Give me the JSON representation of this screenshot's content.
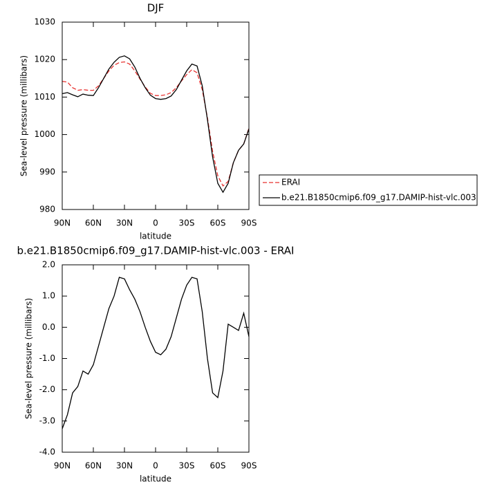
{
  "chart_data": [
    {
      "type": "line",
      "title": "DJF",
      "xlabel": "latitude",
      "ylabel": "Sea-level pressure (millibars)",
      "x": [
        90,
        85,
        80,
        75,
        70,
        65,
        60,
        55,
        50,
        45,
        40,
        35,
        30,
        25,
        20,
        15,
        10,
        5,
        0,
        -5,
        -10,
        -15,
        -20,
        -25,
        -30,
        -35,
        -40,
        -45,
        -50,
        -55,
        -60,
        -65,
        -70,
        -75,
        -80,
        -85,
        -90
      ],
      "series": [
        {
          "name": "ERAI",
          "color": "#e8312f",
          "linestyle": "dashed",
          "values": [
            1014.2,
            1014,
            1012.5,
            1011.8,
            1012,
            1011.8,
            1011.8,
            1013,
            1015,
            1017,
            1018.5,
            1019.2,
            1019.4,
            1018.8,
            1017,
            1014.8,
            1012.7,
            1011,
            1010.4,
            1010.4,
            1010.6,
            1011.2,
            1012.5,
            1014.3,
            1016,
            1017.3,
            1016.5,
            1012,
            1004.5,
            995.5,
            989,
            986.3,
            987.5,
            992.5,
            995.8,
            997.5,
            1001.7
          ]
        },
        {
          "name": "b.e21.B1850cmip6.f09_g17.DAMIP-hist-vlc.003",
          "color": "#000000",
          "linestyle": "solid",
          "values": [
            1010.9,
            1011.2,
            1010.6,
            1010.1,
            1010.8,
            1010.5,
            1010.4,
            1012.5,
            1015,
            1017.5,
            1019.3,
            1020.6,
            1021,
            1020.2,
            1018,
            1015,
            1012.5,
            1010.5,
            1009.6,
            1009.4,
            1009.6,
            1010.3,
            1012,
            1014.5,
            1017,
            1018.8,
            1018.3,
            1013,
            1004,
            994,
            987,
            984.6,
            987,
            992.5,
            995.8,
            997.5,
            1001.5
          ]
        }
      ],
      "xlim": [
        90,
        -90
      ],
      "xticks": [
        {
          "value": 90,
          "label": "90N"
        },
        {
          "value": 60,
          "label": "60N"
        },
        {
          "value": 30,
          "label": "30N"
        },
        0,
        {
          "value": -30,
          "label": "30S"
        },
        {
          "value": -60,
          "label": "60S"
        },
        {
          "value": -90,
          "label": "90S"
        }
      ],
      "ylim": [
        980,
        1030
      ],
      "yticks": [
        980,
        990,
        1000,
        1010,
        1020,
        1030
      ],
      "legend": "outside-right"
    },
    {
      "type": "line",
      "title": "b.e21.B1850cmip6.f09_g17.DAMIP-hist-vlc.003 - ERAI",
      "xlabel": "latitude",
      "ylabel": "Sea-level pressure (millibars)",
      "x": [
        90,
        85,
        80,
        75,
        70,
        65,
        60,
        55,
        50,
        45,
        40,
        35,
        30,
        25,
        20,
        15,
        10,
        5,
        0,
        -5,
        -10,
        -15,
        -20,
        -25,
        -30,
        -35,
        -40,
        -45,
        -50,
        -55,
        -60,
        -65,
        -70,
        -75,
        -80,
        -85,
        -90
      ],
      "series": [
        {
          "name": null,
          "color": "#000000",
          "linestyle": "solid",
          "values": [
            -3.25,
            -2.8,
            -2.1,
            -1.9,
            -1.4,
            -1.5,
            -1.2,
            -0.6,
            0,
            0.6,
            1,
            1.6,
            1.55,
            1.2,
            0.9,
            0.5,
            0,
            -0.45,
            -0.8,
            -0.88,
            -0.7,
            -0.3,
            0.3,
            0.9,
            1.35,
            1.6,
            1.55,
            0.5,
            -1,
            -2.1,
            -2.25,
            -1.4,
            0.1,
            0,
            -0.1,
            0.45,
            -0.3
          ]
        }
      ],
      "xlim": [
        90,
        -90
      ],
      "xticks": [
        {
          "value": 90,
          "label": "90N"
        },
        {
          "value": 60,
          "label": "60N"
        },
        {
          "value": 30,
          "label": "30N"
        },
        0,
        {
          "value": -30,
          "label": "30S"
        },
        {
          "value": -60,
          "label": "60S"
        },
        {
          "value": -90,
          "label": "90S"
        }
      ],
      "ylim": [
        -4,
        2
      ],
      "yticks": [
        {
          "value": -4,
          "label": "-4.0"
        },
        {
          "value": -3,
          "label": "-3.0"
        },
        {
          "value": -2,
          "label": "-2.0"
        },
        {
          "value": -1,
          "label": "-1.0"
        },
        {
          "value": 0,
          "label": "0.0"
        },
        {
          "value": 1,
          "label": "1.0"
        },
        {
          "value": 2,
          "label": "2.0"
        }
      ]
    }
  ]
}
